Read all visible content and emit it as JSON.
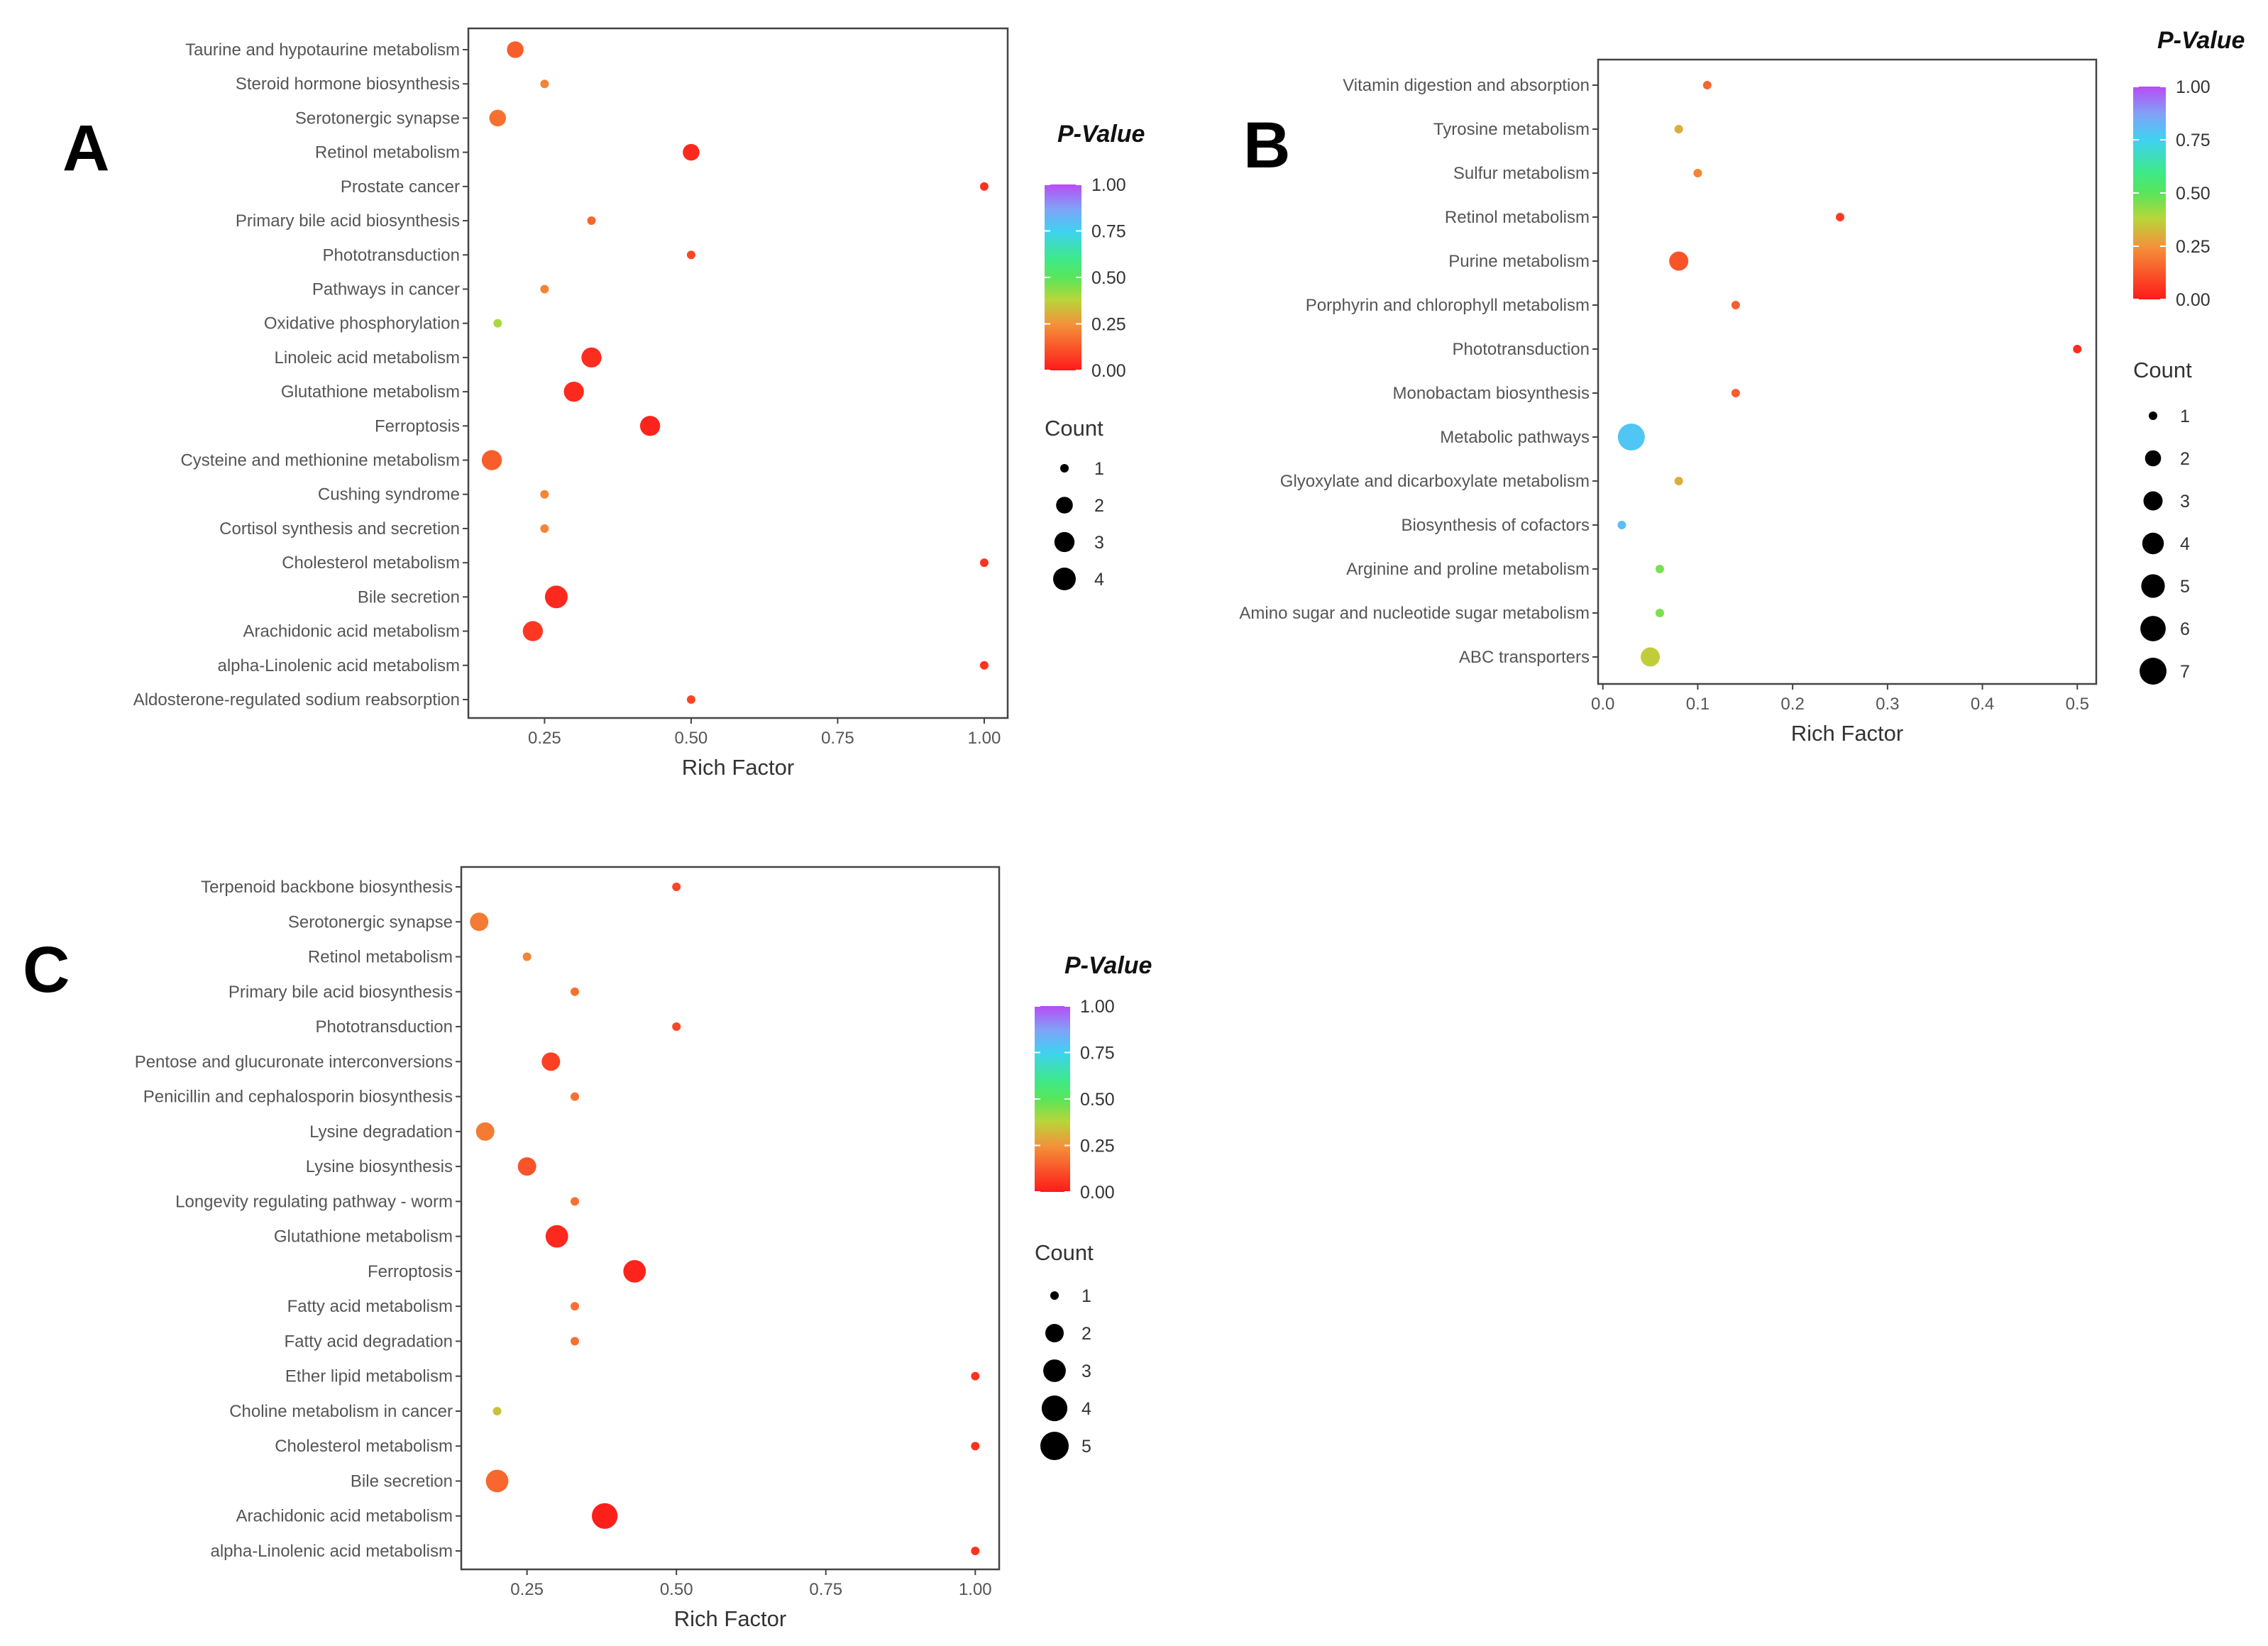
{
  "chart_data": [
    {
      "panel": "A",
      "type": "scatter",
      "xlabel": "Rich Factor",
      "xlim": [
        0.12,
        1.04
      ],
      "xticks": [
        0.25,
        0.5,
        0.75,
        1.0
      ],
      "xtick_labels": [
        "0.25",
        "0.50",
        "0.75",
        "1.00"
      ],
      "color_legend": {
        "title": "P-Value",
        "ticks": [
          "1.00",
          "0.75",
          "0.50",
          "0.25",
          "0.00"
        ]
      },
      "size_legend": {
        "title": "Count",
        "values": [
          1,
          2,
          3,
          4
        ],
        "labels": [
          "1",
          "2",
          "3",
          "4"
        ]
      },
      "categories": [
        "Taurine and hypotaurine metabolism",
        "Steroid hormone biosynthesis",
        "Serotonergic synapse",
        "Retinol metabolism",
        "Prostate cancer",
        "Primary bile acid biosynthesis",
        "Phototransduction",
        "Pathways in cancer",
        "Oxidative phosphorylation",
        "Linoleic acid metabolism",
        "Glutathione metabolism",
        "Ferroptosis",
        "Cysteine and methionine metabolism",
        "Cushing syndrome",
        "Cortisol synthesis and secretion",
        "Cholesterol metabolism",
        "Bile secretion",
        "Arachidonic acid metabolism",
        "alpha-Linolenic acid metabolism",
        "Aldosterone-regulated sodium reabsorption"
      ],
      "points": [
        {
          "x": 0.2,
          "count": 2,
          "p": 0.14
        },
        {
          "x": 0.25,
          "count": 1,
          "p": 0.22
        },
        {
          "x": 0.17,
          "count": 2,
          "p": 0.18
        },
        {
          "x": 0.5,
          "count": 2,
          "p": 0.03
        },
        {
          "x": 1.0,
          "count": 1,
          "p": 0.05
        },
        {
          "x": 0.33,
          "count": 1,
          "p": 0.16
        },
        {
          "x": 0.5,
          "count": 1,
          "p": 0.09
        },
        {
          "x": 0.25,
          "count": 1,
          "p": 0.22
        },
        {
          "x": 0.17,
          "count": 1,
          "p": 0.4
        },
        {
          "x": 0.33,
          "count": 3,
          "p": 0.04
        },
        {
          "x": 0.3,
          "count": 3,
          "p": 0.03
        },
        {
          "x": 0.43,
          "count": 3,
          "p": 0.02
        },
        {
          "x": 0.16,
          "count": 3,
          "p": 0.14
        },
        {
          "x": 0.25,
          "count": 1,
          "p": 0.22
        },
        {
          "x": 0.25,
          "count": 1,
          "p": 0.22
        },
        {
          "x": 1.0,
          "count": 1,
          "p": 0.05
        },
        {
          "x": 0.27,
          "count": 4,
          "p": 0.03
        },
        {
          "x": 0.23,
          "count": 3,
          "p": 0.06
        },
        {
          "x": 1.0,
          "count": 1,
          "p": 0.05
        },
        {
          "x": 0.5,
          "count": 1,
          "p": 0.09
        }
      ]
    },
    {
      "panel": "B",
      "type": "scatter",
      "xlabel": "Rich Factor",
      "xlim": [
        -0.005,
        0.52
      ],
      "xticks": [
        0.0,
        0.1,
        0.2,
        0.3,
        0.4,
        0.5
      ],
      "xtick_labels": [
        "0.0",
        "0.1",
        "0.2",
        "0.3",
        "0.4",
        "0.5"
      ],
      "color_legend": {
        "title": "P-Value",
        "ticks": [
          "1.00",
          "0.75",
          "0.50",
          "0.25",
          "0.00"
        ]
      },
      "size_legend": {
        "title": "Count",
        "values": [
          1,
          2,
          3,
          4,
          5,
          6,
          7
        ],
        "labels": [
          "1",
          "2",
          "3",
          "4",
          "5",
          "6",
          "7"
        ]
      },
      "categories": [
        "Vitamin digestion and absorption",
        "Tyrosine metabolism",
        "Sulfur metabolism",
        "Retinol metabolism",
        "Purine metabolism",
        "Porphyrin and chlorophyll metabolism",
        "Phototransduction",
        "Monobactam biosynthesis",
        "Metabolic pathways",
        "Glyoxylate and dicarboxylate metabolism",
        "Biosynthesis of cofactors",
        "Arginine and proline metabolism",
        "Amino sugar and nucleotide sugar metabolism",
        "ABC transporters"
      ],
      "points": [
        {
          "x": 0.11,
          "count": 1,
          "p": 0.16
        },
        {
          "x": 0.08,
          "count": 1,
          "p": 0.3
        },
        {
          "x": 0.1,
          "count": 1,
          "p": 0.22
        },
        {
          "x": 0.25,
          "count": 1,
          "p": 0.07
        },
        {
          "x": 0.08,
          "count": 3,
          "p": 0.12
        },
        {
          "x": 0.14,
          "count": 1,
          "p": 0.14
        },
        {
          "x": 0.5,
          "count": 1,
          "p": 0.04
        },
        {
          "x": 0.14,
          "count": 1,
          "p": 0.14
        },
        {
          "x": 0.03,
          "count": 7,
          "p": 0.78
        },
        {
          "x": 0.08,
          "count": 1,
          "p": 0.3
        },
        {
          "x": 0.02,
          "count": 1,
          "p": 0.8
        },
        {
          "x": 0.06,
          "count": 1,
          "p": 0.46
        },
        {
          "x": 0.06,
          "count": 1,
          "p": 0.46
        },
        {
          "x": 0.05,
          "count": 3,
          "p": 0.36
        }
      ]
    },
    {
      "panel": "C",
      "type": "scatter",
      "xlabel": "Rich Factor",
      "xlim": [
        0.14,
        1.04
      ],
      "xticks": [
        0.25,
        0.5,
        0.75,
        1.0
      ],
      "xtick_labels": [
        "0.25",
        "0.50",
        "0.75",
        "1.00"
      ],
      "color_legend": {
        "title": "P-Value",
        "ticks": [
          "1.00",
          "0.75",
          "0.50",
          "0.25",
          "0.00"
        ]
      },
      "size_legend": {
        "title": "Count",
        "values": [
          1,
          2,
          3,
          4,
          5
        ],
        "labels": [
          "1",
          "2",
          "3",
          "4",
          "5"
        ]
      },
      "categories": [
        "Terpenoid backbone biosynthesis",
        "Serotonergic synapse",
        "Retinol metabolism",
        "Primary bile acid biosynthesis",
        "Phototransduction",
        "Pentose and glucuronate interconversions",
        "Penicillin and cephalosporin biosynthesis",
        "Lysine degradation",
        "Lysine biosynthesis",
        "Longevity regulating pathway - worm",
        "Glutathione metabolism",
        "Ferroptosis",
        "Fatty acid metabolism",
        "Fatty acid degradation",
        "Ether lipid metabolism",
        "Choline metabolism in cancer",
        "Cholesterol metabolism",
        "Bile secretion",
        "Arachidonic acid metabolism",
        "alpha-Linolenic acid metabolism"
      ],
      "points": [
        {
          "x": 0.5,
          "count": 1,
          "p": 0.09
        },
        {
          "x": 0.17,
          "count": 2,
          "p": 0.2
        },
        {
          "x": 0.25,
          "count": 1,
          "p": 0.22
        },
        {
          "x": 0.33,
          "count": 1,
          "p": 0.18
        },
        {
          "x": 0.5,
          "count": 1,
          "p": 0.09
        },
        {
          "x": 0.29,
          "count": 2,
          "p": 0.08
        },
        {
          "x": 0.33,
          "count": 1,
          "p": 0.18
        },
        {
          "x": 0.18,
          "count": 2,
          "p": 0.2
        },
        {
          "x": 0.25,
          "count": 2,
          "p": 0.12
        },
        {
          "x": 0.33,
          "count": 1,
          "p": 0.18
        },
        {
          "x": 0.3,
          "count": 3,
          "p": 0.03
        },
        {
          "x": 0.43,
          "count": 3,
          "p": 0.02
        },
        {
          "x": 0.33,
          "count": 1,
          "p": 0.18
        },
        {
          "x": 0.33,
          "count": 1,
          "p": 0.18
        },
        {
          "x": 1.0,
          "count": 1,
          "p": 0.05
        },
        {
          "x": 0.2,
          "count": 1,
          "p": 0.34
        },
        {
          "x": 1.0,
          "count": 1,
          "p": 0.05
        },
        {
          "x": 0.2,
          "count": 3,
          "p": 0.16
        },
        {
          "x": 0.38,
          "count": 4,
          "p": 0.01
        },
        {
          "x": 1.0,
          "count": 1,
          "p": 0.05
        }
      ]
    }
  ]
}
